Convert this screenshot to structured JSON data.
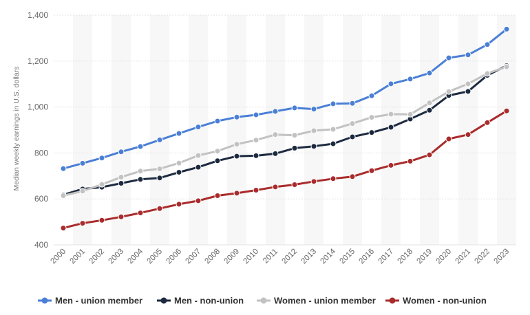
{
  "chart_data": {
    "type": "line",
    "title": "",
    "xlabel": "",
    "ylabel": "Median weekly earnings in U.S. dollars",
    "ylim": [
      400,
      1400
    ],
    "yticks": [
      400,
      600,
      800,
      1000,
      1200,
      1400
    ],
    "ytick_labels": [
      "400",
      "600",
      "800",
      "1,000",
      "1,200",
      "1,400"
    ],
    "grid": true,
    "legend_position": "bottom",
    "categories": [
      "2000",
      "2001",
      "2002",
      "2003",
      "2004",
      "2005",
      "2006",
      "2007",
      "2008",
      "2009",
      "2010",
      "2011",
      "2012",
      "2013",
      "2014",
      "2015",
      "2016",
      "2017",
      "2018",
      "2019",
      "2020",
      "2021",
      "2022",
      "2023"
    ],
    "series": [
      {
        "name": "Men - union member",
        "color": "#4a7fd6",
        "values": [
          732,
          755,
          778,
          805,
          828,
          857,
          885,
          913,
          939,
          956,
          966,
          981,
          996,
          991,
          1014,
          1016,
          1049,
          1101,
          1122,
          1148,
          1214,
          1227,
          1272,
          1339
        ]
      },
      {
        "name": "Men - non-union",
        "color": "#1c2a3f",
        "values": [
          618,
          643,
          651,
          668,
          685,
          691,
          716,
          738,
          766,
          786,
          788,
          797,
          821,
          829,
          840,
          870,
          889,
          912,
          948,
          986,
          1050,
          1068,
          1138,
          1180
        ]
      },
      {
        "name": "Women - union member",
        "color": "#c2c2c2",
        "values": [
          614,
          634,
          663,
          695,
          721,
          731,
          756,
          789,
          808,
          838,
          856,
          880,
          877,
          897,
          903,
          928,
          955,
          969,
          968,
          1018,
          1067,
          1101,
          1146,
          1175
        ]
      },
      {
        "name": "Women - non-union",
        "color": "#a92b2b",
        "values": [
          473,
          494,
          507,
          522,
          539,
          558,
          577,
          592,
          614,
          625,
          638,
          652,
          662,
          676,
          688,
          697,
          723,
          746,
          764,
          792,
          861,
          880,
          932,
          983
        ]
      }
    ]
  }
}
